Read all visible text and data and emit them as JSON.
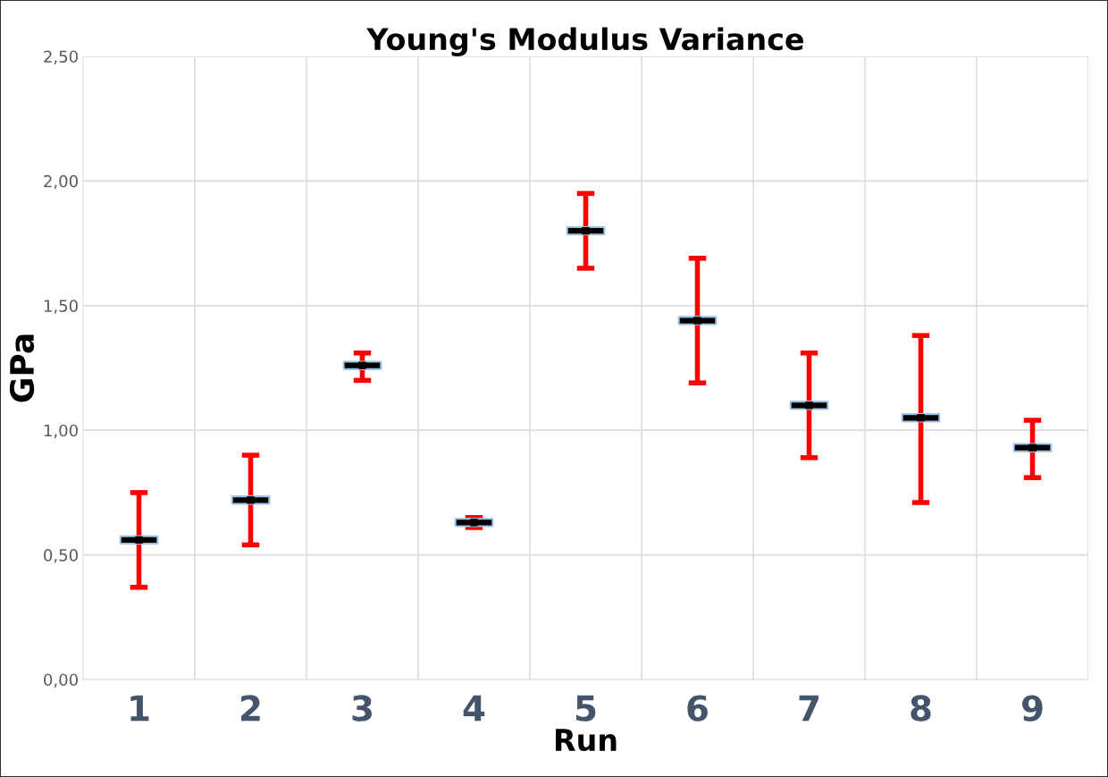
{
  "chart_data": {
    "type": "scatter",
    "title": "Young's Modulus Variance",
    "xlabel": "Run",
    "ylabel": "GPa",
    "categories": [
      "1",
      "2",
      "3",
      "4",
      "5",
      "6",
      "7",
      "8",
      "9"
    ],
    "series": [
      {
        "color": "#000000",
        "values": [
          0.56,
          0.72,
          1.26,
          0.63,
          1.8,
          1.44,
          1.1,
          1.05,
          0.93
        ],
        "errors": [
          0.19,
          0.18,
          [
            1.2,
            1.31
          ],
          0.02,
          0.15,
          0.25,
          0.21,
          [
            0.71,
            1.38
          ],
          [
            0.81,
            1.04
          ]
        ]
      }
    ],
    "ylim": [
      0,
      2.5
    ],
    "yticks": [
      {
        "value": 0,
        "label": "0,00"
      },
      {
        "value": 0.5,
        "label": "0,50"
      },
      {
        "value": 1.0,
        "label": "1,00"
      },
      {
        "value": 1.5,
        "label": "1,50"
      },
      {
        "value": 2.0,
        "label": "2,00"
      },
      {
        "value": 2.5,
        "label": "2,50"
      }
    ],
    "grid": true,
    "marker": "square"
  }
}
